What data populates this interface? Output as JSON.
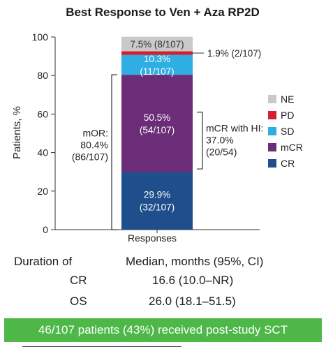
{
  "chart_data": {
    "type": "bar",
    "stacked": true,
    "title": "Best Response to Ven + Aza RP2D",
    "ylabel": "Patients, %",
    "categories": [
      "Responses"
    ],
    "ylim": [
      0,
      100
    ],
    "yticks": [
      "0",
      "20",
      "40",
      "60",
      "80",
      "100"
    ],
    "series": [
      {
        "name": "CR",
        "values": [
          29.9
        ],
        "color": "#1f4e8c",
        "label_lines": [
          "29.9%",
          "(32/107)"
        ]
      },
      {
        "name": "mCR",
        "values": [
          50.5
        ],
        "color": "#6b2d78",
        "label_lines": [
          "50.5%",
          "(54/107)"
        ]
      },
      {
        "name": "SD",
        "values": [
          10.3
        ],
        "color": "#2eaee3",
        "label_lines": [
          "10.3%",
          "(11/107)"
        ]
      },
      {
        "name": "PD",
        "values": [
          1.9
        ],
        "color": "#d2202f",
        "label_lines": [
          "1.9% (2/107)"
        ]
      },
      {
        "name": "NE",
        "values": [
          7.5
        ],
        "color": "#c9c9c9",
        "label_lines": [
          "7.5% (8/107)"
        ]
      }
    ],
    "legend": [
      "NE",
      "PD",
      "SD",
      "mCR",
      "CR"
    ],
    "legend_position": "right",
    "annotations": {
      "mor": [
        "mOR:",
        "80.4%",
        "(86/107)"
      ],
      "mcr_hi": [
        "mCR with HI:",
        "37.0%",
        "(20/54)"
      ]
    }
  },
  "duration": {
    "header_left": "Duration of",
    "header_right": "Median, months (95%, CI)",
    "rows": [
      {
        "label": "CR",
        "value": "16.6 (10.0–NR)"
      },
      {
        "label": "OS",
        "value": "26.0 (18.1–51.5)"
      }
    ]
  },
  "banner": {
    "text": "46/107 patients (43%) received post-study SCT",
    "color": "#4db848"
  }
}
